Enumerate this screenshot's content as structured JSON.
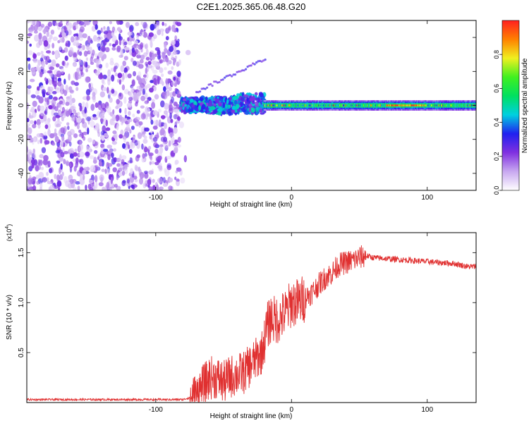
{
  "title": "C2E1.2025.365.06.48.G20",
  "chart_data": [
    {
      "type": "heatmap",
      "title": "C2E1.2025.365.06.48.G20",
      "xlabel": "Height of straight line (km)",
      "ylabel": "Frequency (Hz)",
      "xlim": [
        -195,
        136
      ],
      "ylim": [
        -50,
        50
      ],
      "xticks": [
        -100,
        0,
        100
      ],
      "xtick_labels": [
        "-100",
        "0",
        "100"
      ],
      "yticks": [
        -40,
        -20,
        0,
        20,
        40
      ],
      "ytick_labels": [
        "-40",
        "-20",
        "0",
        "20",
        "40"
      ],
      "grid": false,
      "description_regions": [
        {
          "x_range": [
            -195,
            -82
          ],
          "freq_range": [
            -50,
            50
          ],
          "amplitude_range": [
            0.05,
            0.3
          ],
          "pattern": "scattered noise"
        },
        {
          "x_range": [
            -82,
            -20
          ],
          "freq_range": [
            -8,
            6
          ],
          "amplitude_range": [
            0.2,
            0.5
          ],
          "pattern": "broadening signal band"
        },
        {
          "x_range": [
            -20,
            136
          ],
          "freq_range": [
            -3,
            3
          ],
          "amplitude_range": [
            0.3,
            1.0
          ],
          "pattern": "narrow carrier line"
        }
      ],
      "colorbar": {
        "label": "Normalized spectral amplitude",
        "range": [
          0,
          1
        ],
        "ticks": [
          0.0,
          0.2,
          0.4,
          0.6,
          0.8
        ],
        "tick_labels": [
          "0.0",
          "0.2",
          "0.4",
          "0.6",
          "0.8"
        ],
        "colors": [
          "#ffffff",
          "#c8a8f0",
          "#8030e0",
          "#2020f0",
          "#00d0e0",
          "#00e060",
          "#40f020",
          "#f0f020",
          "#ff8000",
          "#ff2020"
        ]
      }
    },
    {
      "type": "line",
      "title": "",
      "xlabel": "Height of straight line (km)",
      "ylabel": "SNR (10 * v/v)",
      "y_multiplier_label": "(x10",
      "y_multiplier_exp": "4",
      "y_multiplier_close": ")",
      "xlim": [
        -195,
        136
      ],
      "ylim": [
        0,
        1.7
      ],
      "xticks": [
        -100,
        0,
        100
      ],
      "xtick_labels": [
        "-100",
        "0",
        "100"
      ],
      "yticks": [
        0.5,
        1.0,
        1.5
      ],
      "ytick_labels": [
        "0.5",
        "1.0",
        "1.5"
      ],
      "grid": false,
      "series": [
        {
          "name": "SNR",
          "color": "#e03030",
          "x": [
            -195,
            -150,
            -100,
            -80,
            -72,
            -68,
            -64,
            -60,
            -55,
            -50,
            -45,
            -40,
            -35,
            -30,
            -25,
            -22,
            -18,
            -15,
            -12,
            -8,
            -4,
            0,
            5,
            10,
            15,
            20,
            25,
            30,
            35,
            40,
            45,
            50,
            55,
            60,
            70,
            80,
            90,
            100,
            110,
            120,
            130,
            136
          ],
          "values": [
            0.03,
            0.03,
            0.03,
            0.03,
            0.06,
            0.12,
            0.18,
            0.25,
            0.25,
            0.2,
            0.26,
            0.28,
            0.3,
            0.38,
            0.45,
            0.5,
            0.75,
            0.85,
            0.82,
            0.85,
            0.9,
            1.0,
            1.0,
            1.05,
            1.1,
            1.18,
            1.25,
            1.3,
            1.38,
            1.4,
            1.42,
            1.45,
            1.47,
            1.45,
            1.44,
            1.43,
            1.42,
            1.41,
            1.4,
            1.39,
            1.36,
            1.36
          ]
        }
      ]
    }
  ]
}
